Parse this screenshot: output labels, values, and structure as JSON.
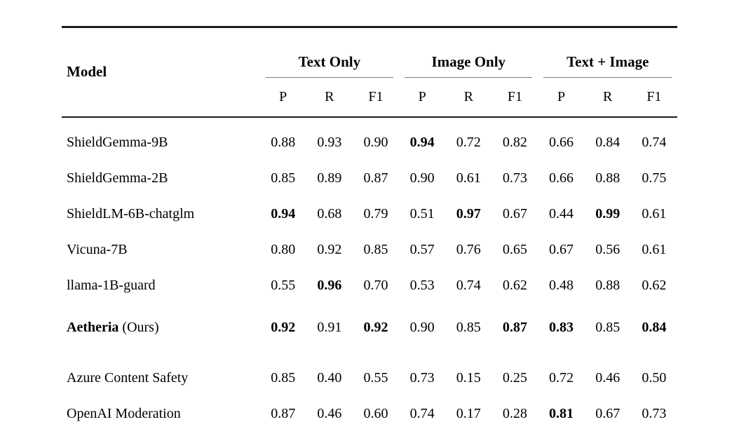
{
  "colors": {
    "background": "#ffffff",
    "text": "#000000",
    "rule_heavy": "#1c1c1c",
    "rule_light": "#7d7d7d"
  },
  "table": {
    "model_header": "Model",
    "groups": [
      {
        "label": "Text Only"
      },
      {
        "label": "Image Only"
      },
      {
        "label": "Text + Image"
      }
    ],
    "metric_headers": [
      "P",
      "R",
      "F1",
      "P",
      "R",
      "F1",
      "P",
      "R",
      "F1"
    ],
    "rows": [
      {
        "model": "ShieldGemma-9B",
        "model_suffix": "",
        "model_bold": false,
        "values": [
          "0.88",
          "0.93",
          "0.90",
          "0.94",
          "0.72",
          "0.82",
          "0.66",
          "0.84",
          "0.74"
        ],
        "bold": [
          false,
          false,
          false,
          true,
          false,
          false,
          false,
          false,
          false
        ]
      },
      {
        "model": "ShieldGemma-2B",
        "model_suffix": "",
        "model_bold": false,
        "values": [
          "0.85",
          "0.89",
          "0.87",
          "0.90",
          "0.61",
          "0.73",
          "0.66",
          "0.88",
          "0.75"
        ],
        "bold": [
          false,
          false,
          false,
          false,
          false,
          false,
          false,
          false,
          false
        ]
      },
      {
        "model": "ShieldLM-6B-chatglm",
        "model_suffix": "",
        "model_bold": false,
        "values": [
          "0.94",
          "0.68",
          "0.79",
          "0.51",
          "0.97",
          "0.67",
          "0.44",
          "0.99",
          "0.61"
        ],
        "bold": [
          true,
          false,
          false,
          false,
          true,
          false,
          false,
          true,
          false
        ]
      },
      {
        "model": "Vicuna-7B",
        "model_suffix": "",
        "model_bold": false,
        "values": [
          "0.80",
          "0.92",
          "0.85",
          "0.57",
          "0.76",
          "0.65",
          "0.67",
          "0.56",
          "0.61"
        ],
        "bold": [
          false,
          false,
          false,
          false,
          false,
          false,
          false,
          false,
          false
        ]
      },
      {
        "model": "llama-1B-guard",
        "model_suffix": "",
        "model_bold": false,
        "values": [
          "0.55",
          "0.96",
          "0.70",
          "0.53",
          "0.74",
          "0.62",
          "0.48",
          "0.88",
          "0.62"
        ],
        "bold": [
          false,
          true,
          false,
          false,
          false,
          false,
          false,
          false,
          false
        ]
      },
      {
        "model": "Aetheria",
        "model_suffix": " (Ours)",
        "model_bold": true,
        "values": [
          "0.92",
          "0.91",
          "0.92",
          "0.90",
          "0.85",
          "0.87",
          "0.83",
          "0.85",
          "0.84"
        ],
        "bold": [
          true,
          false,
          true,
          false,
          false,
          true,
          true,
          false,
          true
        ]
      },
      {
        "model": "Azure Content Safety",
        "model_suffix": "",
        "model_bold": false,
        "values": [
          "0.85",
          "0.40",
          "0.55",
          "0.73",
          "0.15",
          "0.25",
          "0.72",
          "0.46",
          "0.50"
        ],
        "bold": [
          false,
          false,
          false,
          false,
          false,
          false,
          false,
          false,
          false
        ]
      },
      {
        "model": "OpenAI Moderation",
        "model_suffix": "",
        "model_bold": false,
        "values": [
          "0.87",
          "0.46",
          "0.60",
          "0.74",
          "0.17",
          "0.28",
          "0.81",
          "0.67",
          "0.73"
        ],
        "bold": [
          false,
          false,
          false,
          false,
          false,
          false,
          true,
          false,
          false
        ]
      }
    ]
  }
}
